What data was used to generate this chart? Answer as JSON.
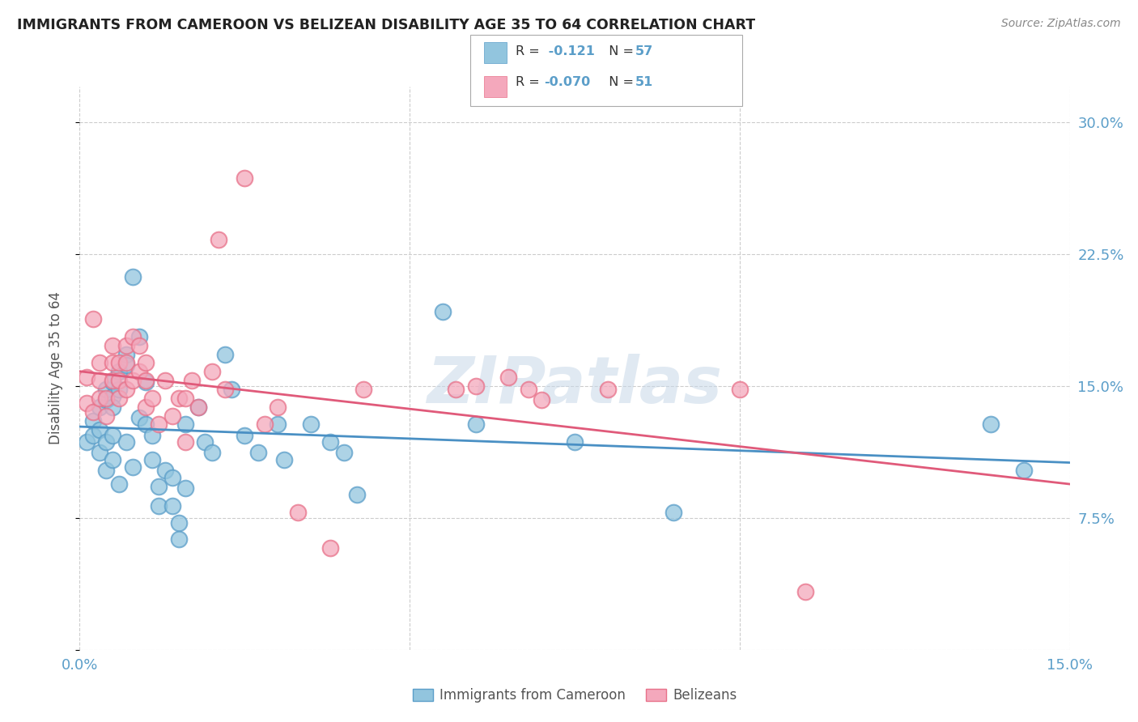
{
  "title": "IMMIGRANTS FROM CAMEROON VS BELIZEAN DISABILITY AGE 35 TO 64 CORRELATION CHART",
  "source": "Source: ZipAtlas.com",
  "ylabel": "Disability Age 35 to 64",
  "xlim": [
    0.0,
    0.15
  ],
  "ylim": [
    0.0,
    0.32
  ],
  "yticks": [
    0.0,
    0.075,
    0.15,
    0.225,
    0.3
  ],
  "yticklabels": [
    "",
    "7.5%",
    "15.0%",
    "22.5%",
    "30.0%"
  ],
  "xticks": [
    0.0,
    0.05,
    0.1,
    0.15
  ],
  "xticklabels": [
    "0.0%",
    "",
    "",
    "15.0%"
  ],
  "legend_labels": [
    "Immigrants from Cameroon",
    "Belizeans"
  ],
  "blue_color": "#92c5de",
  "pink_color": "#f4a8bc",
  "blue_edge_color": "#5b9ec9",
  "pink_edge_color": "#e8728a",
  "blue_line_color": "#4a90c4",
  "pink_line_color": "#e05a7a",
  "title_color": "#222222",
  "axis_label_color": "#555555",
  "tick_color": "#5b9ec9",
  "grid_color": "#cccccc",
  "watermark": "ZIPatlas",
  "blue_points_x": [
    0.001,
    0.002,
    0.002,
    0.003,
    0.003,
    0.003,
    0.004,
    0.004,
    0.004,
    0.004,
    0.005,
    0.005,
    0.005,
    0.005,
    0.005,
    0.006,
    0.006,
    0.006,
    0.007,
    0.007,
    0.007,
    0.008,
    0.008,
    0.009,
    0.009,
    0.01,
    0.01,
    0.011,
    0.011,
    0.012,
    0.012,
    0.013,
    0.014,
    0.014,
    0.015,
    0.015,
    0.016,
    0.016,
    0.018,
    0.019,
    0.02,
    0.022,
    0.023,
    0.025,
    0.027,
    0.03,
    0.031,
    0.035,
    0.038,
    0.04,
    0.042,
    0.055,
    0.06,
    0.075,
    0.09,
    0.138,
    0.143
  ],
  "blue_points_y": [
    0.118,
    0.13,
    0.122,
    0.112,
    0.125,
    0.138,
    0.142,
    0.148,
    0.118,
    0.102,
    0.152,
    0.144,
    0.138,
    0.122,
    0.108,
    0.158,
    0.148,
    0.094,
    0.168,
    0.162,
    0.118,
    0.212,
    0.104,
    0.178,
    0.132,
    0.152,
    0.128,
    0.122,
    0.108,
    0.093,
    0.082,
    0.102,
    0.098,
    0.082,
    0.072,
    0.063,
    0.092,
    0.128,
    0.138,
    0.118,
    0.112,
    0.168,
    0.148,
    0.122,
    0.112,
    0.128,
    0.108,
    0.128,
    0.118,
    0.112,
    0.088,
    0.192,
    0.128,
    0.118,
    0.078,
    0.128,
    0.102
  ],
  "pink_points_x": [
    0.001,
    0.001,
    0.002,
    0.002,
    0.003,
    0.003,
    0.003,
    0.004,
    0.004,
    0.005,
    0.005,
    0.005,
    0.006,
    0.006,
    0.006,
    0.007,
    0.007,
    0.007,
    0.008,
    0.008,
    0.009,
    0.009,
    0.01,
    0.01,
    0.01,
    0.011,
    0.012,
    0.013,
    0.014,
    0.015,
    0.016,
    0.016,
    0.017,
    0.018,
    0.02,
    0.021,
    0.022,
    0.025,
    0.028,
    0.03,
    0.033,
    0.038,
    0.043,
    0.057,
    0.06,
    0.065,
    0.068,
    0.07,
    0.08,
    0.1,
    0.11
  ],
  "pink_points_y": [
    0.14,
    0.155,
    0.135,
    0.188,
    0.153,
    0.143,
    0.163,
    0.143,
    0.133,
    0.173,
    0.163,
    0.153,
    0.163,
    0.153,
    0.143,
    0.173,
    0.163,
    0.148,
    0.178,
    0.153,
    0.173,
    0.158,
    0.163,
    0.153,
    0.138,
    0.143,
    0.128,
    0.153,
    0.133,
    0.143,
    0.143,
    0.118,
    0.153,
    0.138,
    0.158,
    0.233,
    0.148,
    0.268,
    0.128,
    0.138,
    0.078,
    0.058,
    0.148,
    0.148,
    0.15,
    0.155,
    0.148,
    0.142,
    0.148,
    0.148,
    0.033
  ]
}
